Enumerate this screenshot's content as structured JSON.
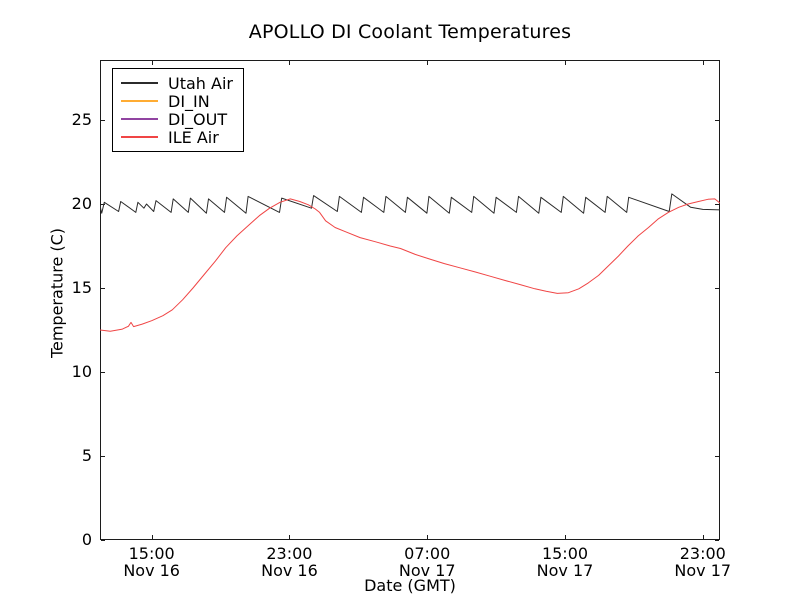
{
  "chart_data": {
    "type": "line",
    "title": "APOLLO DI Coolant Temperatures",
    "xlabel": "Date (GMT)",
    "ylabel": "Temperature (C)",
    "x_unit": "hours since Nov 16 12:00 GMT",
    "xlim": [
      0,
      36
    ],
    "ylim": [
      0,
      28.57
    ],
    "grid": false,
    "legend_position": "upper-left",
    "yticks": [
      {
        "v": 0,
        "label": "0"
      },
      {
        "v": 5,
        "label": "5"
      },
      {
        "v": 10,
        "label": "10"
      },
      {
        "v": 15,
        "label": "15"
      },
      {
        "v": 20,
        "label": "20"
      },
      {
        "v": 25,
        "label": "25"
      }
    ],
    "xticks": [
      {
        "t": 3,
        "time": "15:00",
        "date": "Nov 16"
      },
      {
        "t": 11,
        "time": "23:00",
        "date": "Nov 16"
      },
      {
        "t": 19,
        "time": "07:00",
        "date": "Nov 17"
      },
      {
        "t": 27,
        "time": "15:00",
        "date": "Nov 17"
      },
      {
        "t": 35,
        "time": "23:00",
        "date": "Nov 17"
      }
    ],
    "series": [
      {
        "name": "Utah Air",
        "color": "#2b2b2b",
        "points": [
          [
            0,
            19.9
          ],
          [
            0.1,
            19.45
          ],
          [
            0.25,
            20.1
          ],
          [
            1.08,
            19.55
          ],
          [
            1.2,
            20.15
          ],
          [
            2.08,
            19.5
          ],
          [
            2.2,
            20.1
          ],
          [
            2.55,
            19.75
          ],
          [
            2.7,
            20.0
          ],
          [
            3.12,
            19.55
          ],
          [
            3.25,
            20.2
          ],
          [
            4.13,
            19.5
          ],
          [
            4.25,
            20.3
          ],
          [
            5.13,
            19.5
          ],
          [
            5.25,
            20.35
          ],
          [
            6.18,
            19.45
          ],
          [
            6.3,
            20.3
          ],
          [
            7.23,
            19.5
          ],
          [
            7.35,
            20.4
          ],
          [
            8.48,
            19.45
          ],
          [
            8.6,
            20.45
          ],
          [
            10.42,
            19.5
          ],
          [
            10.55,
            20.35
          ],
          [
            12.28,
            19.75
          ],
          [
            12.4,
            20.5
          ],
          [
            13.78,
            19.55
          ],
          [
            13.9,
            20.45
          ],
          [
            15.18,
            19.5
          ],
          [
            15.3,
            20.4
          ],
          [
            16.48,
            19.5
          ],
          [
            16.6,
            20.45
          ],
          [
            17.73,
            19.5
          ],
          [
            17.85,
            20.4
          ],
          [
            18.98,
            19.45
          ],
          [
            19.1,
            20.45
          ],
          [
            20.28,
            19.45
          ],
          [
            20.4,
            20.4
          ],
          [
            21.58,
            19.5
          ],
          [
            21.7,
            20.45
          ],
          [
            22.88,
            19.45
          ],
          [
            23.0,
            20.4
          ],
          [
            24.18,
            19.5
          ],
          [
            24.3,
            20.45
          ],
          [
            25.48,
            19.45
          ],
          [
            25.6,
            20.4
          ],
          [
            26.78,
            19.5
          ],
          [
            26.9,
            20.45
          ],
          [
            28.08,
            19.45
          ],
          [
            28.2,
            20.4
          ],
          [
            29.33,
            19.5
          ],
          [
            29.45,
            20.45
          ],
          [
            30.58,
            19.5
          ],
          [
            30.7,
            20.4
          ],
          [
            33.05,
            19.55
          ],
          [
            33.2,
            20.6
          ],
          [
            34.3,
            19.8
          ],
          [
            35.0,
            19.68
          ],
          [
            36,
            19.65
          ]
        ]
      },
      {
        "name": "DI_IN",
        "color": "#ffac33",
        "points": [],
        "note": "listed in legend; no visible curve in plot"
      },
      {
        "name": "DI_OUT",
        "color": "#9144a1",
        "points": [],
        "note": "listed in legend; no visible curve in plot"
      },
      {
        "name": "ILE Air",
        "color": "#f04545",
        "points": [
          [
            0,
            12.5
          ],
          [
            0.6,
            12.42
          ],
          [
            1.3,
            12.55
          ],
          [
            1.65,
            12.72
          ],
          [
            1.8,
            12.95
          ],
          [
            1.95,
            12.7
          ],
          [
            2.45,
            12.85
          ],
          [
            3.0,
            13.05
          ],
          [
            3.65,
            13.35
          ],
          [
            4.2,
            13.7
          ],
          [
            4.8,
            14.3
          ],
          [
            5.4,
            15.0
          ],
          [
            6.05,
            15.8
          ],
          [
            6.7,
            16.6
          ],
          [
            7.3,
            17.4
          ],
          [
            7.95,
            18.1
          ],
          [
            8.6,
            18.7
          ],
          [
            9.25,
            19.3
          ],
          [
            9.85,
            19.75
          ],
          [
            10.45,
            20.1
          ],
          [
            11.05,
            20.3
          ],
          [
            11.6,
            20.15
          ],
          [
            12.1,
            19.95
          ],
          [
            12.5,
            19.7
          ],
          [
            12.75,
            19.5
          ],
          [
            13.1,
            19.0
          ],
          [
            13.65,
            18.6
          ],
          [
            14.25,
            18.35
          ],
          [
            15.1,
            18.0
          ],
          [
            16.0,
            17.75
          ],
          [
            16.85,
            17.5
          ],
          [
            17.45,
            17.35
          ],
          [
            18.3,
            17.0
          ],
          [
            19.2,
            16.7
          ],
          [
            20.0,
            16.45
          ],
          [
            20.9,
            16.2
          ],
          [
            21.8,
            15.95
          ],
          [
            22.65,
            15.7
          ],
          [
            23.5,
            15.45
          ],
          [
            24.4,
            15.2
          ],
          [
            25.25,
            14.95
          ],
          [
            25.9,
            14.8
          ],
          [
            26.55,
            14.68
          ],
          [
            27.2,
            14.72
          ],
          [
            27.8,
            14.95
          ],
          [
            28.35,
            15.3
          ],
          [
            28.95,
            15.75
          ],
          [
            29.5,
            16.3
          ],
          [
            30.1,
            16.9
          ],
          [
            30.65,
            17.5
          ],
          [
            31.25,
            18.1
          ],
          [
            31.85,
            18.6
          ],
          [
            32.4,
            19.1
          ],
          [
            33.0,
            19.5
          ],
          [
            33.6,
            19.8
          ],
          [
            34.15,
            20.0
          ],
          [
            34.75,
            20.15
          ],
          [
            35.3,
            20.28
          ],
          [
            35.7,
            20.3
          ],
          [
            36,
            20.05
          ]
        ]
      }
    ],
    "axis_color": "#1c1c1c",
    "background": "#ffffff"
  }
}
